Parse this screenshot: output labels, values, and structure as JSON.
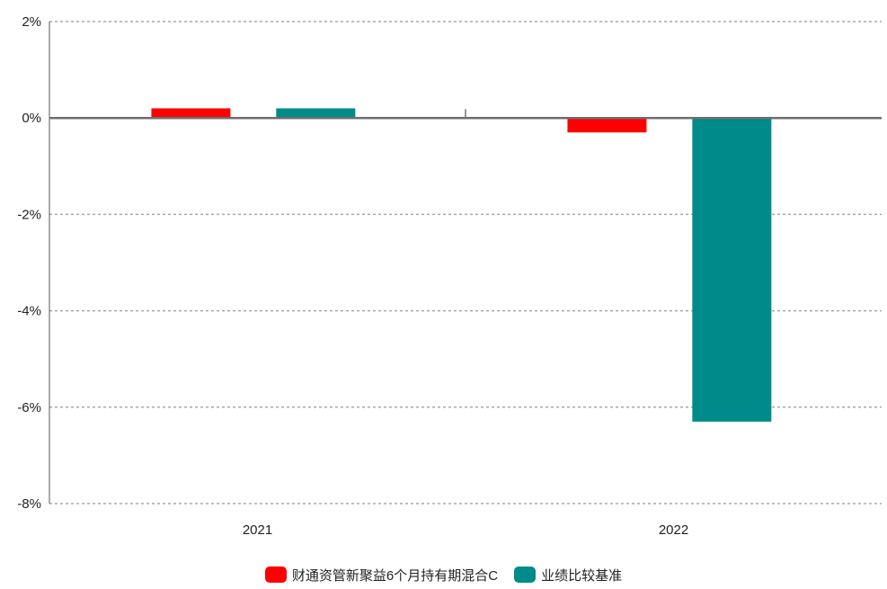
{
  "chart_data": {
    "type": "bar",
    "categories": [
      "2021",
      "2022"
    ],
    "series": [
      {
        "name": "财通资管新聚益6个月持有期混合C",
        "color": "#ff0000",
        "values": [
          0.2,
          -0.3
        ]
      },
      {
        "name": "业绩比较基准",
        "color": "#008b8b",
        "values": [
          0.2,
          -6.3
        ]
      }
    ],
    "ylim": [
      -8,
      2
    ],
    "yticks": [
      2,
      0,
      -2,
      -4,
      -6,
      -8
    ],
    "ytick_labels": [
      "2%",
      "0%",
      "-2%",
      "-4%",
      "-6%",
      "-8%"
    ],
    "grid": true,
    "legend_position": "bottom",
    "title": "",
    "xlabel": "",
    "ylabel": ""
  }
}
